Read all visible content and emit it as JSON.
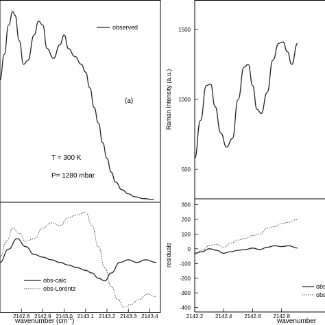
{
  "chart_data": [
    {
      "type": "line",
      "panel": "left-top",
      "legend": [
        {
          "label": "observed",
          "style": "solid"
        }
      ],
      "annotations": {
        "label": "(a)",
        "temperature": "T = 300 K",
        "pressure": "P= 1280 mbar"
      },
      "xlim": [
        2142.7,
        2143.45
      ],
      "ylim": [
        0,
        1
      ],
      "series": [
        {
          "name": "observed",
          "style": "solid",
          "x": [
            2142.7,
            2142.72,
            2142.74,
            2142.76,
            2142.77,
            2142.79,
            2142.81,
            2142.83,
            2142.86,
            2142.88,
            2142.9,
            2142.92,
            2142.95,
            2142.98,
            2143.0,
            2143.02,
            2143.05,
            2143.08,
            2143.1,
            2143.12,
            2143.14,
            2143.16,
            2143.18,
            2143.2,
            2143.22,
            2143.24,
            2143.27,
            2143.3,
            2143.33,
            2143.37,
            2143.42
          ],
          "y": [
            0.62,
            0.75,
            0.9,
            0.97,
            0.95,
            0.82,
            0.7,
            0.72,
            0.85,
            0.92,
            0.9,
            0.78,
            0.73,
            0.8,
            0.85,
            0.78,
            0.74,
            0.7,
            0.66,
            0.58,
            0.48,
            0.4,
            0.3,
            0.22,
            0.15,
            0.1,
            0.06,
            0.04,
            0.025,
            0.015,
            0.01
          ]
        }
      ]
    },
    {
      "type": "line",
      "panel": "left-bottom",
      "legend": [
        {
          "label": "obs-calc",
          "style": "solid"
        },
        {
          "label": "obs-Lorentz",
          "style": "dotted"
        }
      ],
      "xlabel": "wavenumber (cm",
      "xlabel_superscript": "-1",
      "xlabel_close": ")",
      "x_ticks": [
        "2142.8",
        "2142.9",
        "2143.0",
        "2143.1",
        "2143.2",
        "2143.3",
        "2143.4"
      ],
      "x_tick_values": [
        2142.8,
        2142.9,
        2143.0,
        2143.1,
        2143.2,
        2143.3,
        2143.4
      ],
      "xlim": [
        2142.7,
        2143.45
      ],
      "ylim": [
        -1,
        1
      ],
      "series": [
        {
          "name": "obs-calc",
          "style": "solid",
          "x": [
            2142.7,
            2142.74,
            2142.78,
            2142.82,
            2142.86,
            2142.9,
            2142.94,
            2142.98,
            2143.02,
            2143.06,
            2143.1,
            2143.13,
            2143.16,
            2143.19,
            2143.22,
            2143.26,
            2143.3,
            2143.34,
            2143.38,
            2143.43
          ],
          "y": [
            -0.1,
            0.15,
            0.35,
            0.2,
            0.05,
            0.0,
            -0.05,
            -0.1,
            -0.15,
            -0.2,
            -0.25,
            -0.3,
            -0.4,
            -0.45,
            -0.3,
            -0.1,
            -0.05,
            -0.1,
            -0.05,
            -0.1
          ]
        },
        {
          "name": "obs-Lorentz",
          "style": "dotted",
          "x": [
            2142.7,
            2142.73,
            2142.76,
            2142.79,
            2142.82,
            2142.86,
            2142.9,
            2142.94,
            2142.98,
            2143.02,
            2143.06,
            2143.1,
            2143.13,
            2143.16,
            2143.19,
            2143.22,
            2143.25,
            2143.28,
            2143.31,
            2143.35,
            2143.39,
            2143.43
          ],
          "y": [
            0.0,
            0.3,
            0.55,
            0.45,
            0.3,
            0.35,
            0.55,
            0.65,
            0.6,
            0.75,
            0.8,
            0.85,
            0.6,
            0.2,
            -0.2,
            -0.55,
            -0.8,
            -0.95,
            -0.9,
            -0.8,
            -0.7,
            -0.75
          ]
        }
      ]
    },
    {
      "type": "line",
      "panel": "right-top",
      "ylabel": "Raman Intensity (a.u.)",
      "y_ticks": [
        "500",
        "1000",
        "1500"
      ],
      "y_tick_values": [
        500,
        1000,
        1500
      ],
      "xlim": [
        2142.2,
        2143.1
      ],
      "ylim": [
        300,
        1700
      ],
      "series": [
        {
          "name": "",
          "style": "solid",
          "x": [
            2142.2,
            2142.24,
            2142.28,
            2142.31,
            2142.34,
            2142.38,
            2142.42,
            2142.46,
            2142.5,
            2142.54,
            2142.57,
            2142.6,
            2142.63,
            2142.66,
            2142.7,
            2142.74,
            2142.78,
            2142.81,
            2142.84,
            2142.87,
            2142.91
          ],
          "y": [
            580,
            850,
            1100,
            1110,
            950,
            760,
            660,
            720,
            1000,
            1230,
            1250,
            1100,
            930,
            900,
            1050,
            1280,
            1400,
            1410,
            1340,
            1250,
            1400
          ]
        }
      ]
    },
    {
      "type": "line",
      "panel": "right-bottom",
      "ylabel": "residuals",
      "xlabel": "wavenumber",
      "legend": [
        {
          "label": "obs",
          "style": "solid"
        },
        {
          "label": "obs",
          "style": "dotted"
        }
      ],
      "x_ticks": [
        "2142.2",
        "2142.4",
        "2142.6",
        "2142.8"
      ],
      "x_tick_values": [
        2142.2,
        2142.4,
        2142.6,
        2142.8
      ],
      "y_ticks": [
        "-400",
        "-300",
        "-200",
        "-100",
        "0",
        "100",
        "200",
        "300"
      ],
      "y_tick_values": [
        -400,
        -300,
        -200,
        -100,
        0,
        100,
        200,
        300
      ],
      "xlim": [
        2142.2,
        2143.1
      ],
      "ylim": [
        -420,
        330
      ],
      "series": [
        {
          "name": "obs",
          "style": "solid",
          "x": [
            2142.2,
            2142.25,
            2142.3,
            2142.35,
            2142.4,
            2142.45,
            2142.5,
            2142.55,
            2142.6,
            2142.65,
            2142.7,
            2142.75,
            2142.8,
            2142.85,
            2142.91
          ],
          "y": [
            -30,
            -20,
            0,
            -10,
            -30,
            -20,
            -10,
            -5,
            5,
            -5,
            10,
            20,
            15,
            20,
            5
          ]
        },
        {
          "name": "obs",
          "style": "dotted",
          "x": [
            2142.2,
            2142.25,
            2142.3,
            2142.35,
            2142.4,
            2142.45,
            2142.5,
            2142.55,
            2142.6,
            2142.65,
            2142.7,
            2142.75,
            2142.8,
            2142.85,
            2142.91
          ],
          "y": [
            -40,
            -10,
            20,
            30,
            10,
            40,
            60,
            70,
            90,
            100,
            140,
            150,
            170,
            180,
            200
          ]
        }
      ]
    }
  ]
}
